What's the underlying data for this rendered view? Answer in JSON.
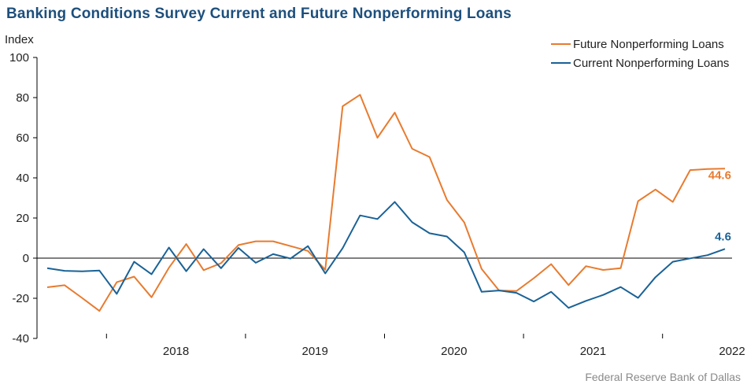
{
  "title": "Banking Conditions Survey Current and Future Nonperforming Loans",
  "source": "Federal Reserve Bank of Dallas",
  "chart_data": {
    "type": "line",
    "ylabel": "Index",
    "ylim": [
      -40,
      100
    ],
    "yticks": [
      -40,
      -20,
      0,
      20,
      40,
      60,
      80,
      100
    ],
    "x_start_year": 2017.5,
    "x_end_year": 2022.5,
    "year_labels": [
      "2018",
      "2019",
      "2020",
      "2021",
      "2022"
    ],
    "legend_position": "top-right",
    "series": [
      {
        "name": "Future Nonperforming Loans",
        "color": "#e87b2f",
        "end_label": "44.6",
        "values": [
          -14.5,
          -13.5,
          -19.8,
          -26.3,
          -12.0,
          -9.2,
          -19.5,
          -4.8,
          7.0,
          -6.0,
          -2.5,
          6.5,
          8.4,
          8.4,
          6.0,
          3.6,
          -5.8,
          75.7,
          81.4,
          60.0,
          72.5,
          54.5,
          50.4,
          29.0,
          17.8,
          -5.4,
          -16.1,
          -16.4,
          -10.0,
          -3.0,
          -13.4,
          -4.0,
          -5.9,
          -5.0,
          28.4,
          34.2,
          28.0,
          43.9,
          44.4,
          44.6
        ]
      },
      {
        "name": "Current Nonperforming Loans",
        "color": "#1a6296",
        "end_label": "4.6",
        "values": [
          -5.0,
          -6.3,
          -6.6,
          -6.2,
          -17.8,
          -1.8,
          -8.0,
          5.3,
          -6.5,
          4.5,
          -5.0,
          5.1,
          -2.3,
          2.0,
          -0.2,
          6.0,
          -7.6,
          5.0,
          21.3,
          19.5,
          28.0,
          17.9,
          12.4,
          10.8,
          2.9,
          -16.8,
          -16.1,
          -17.3,
          -21.6,
          -16.8,
          -24.8,
          -21.3,
          -18.3,
          -14.4,
          -19.8,
          -9.5,
          -1.8,
          -0.1,
          1.5,
          4.6
        ]
      }
    ]
  }
}
